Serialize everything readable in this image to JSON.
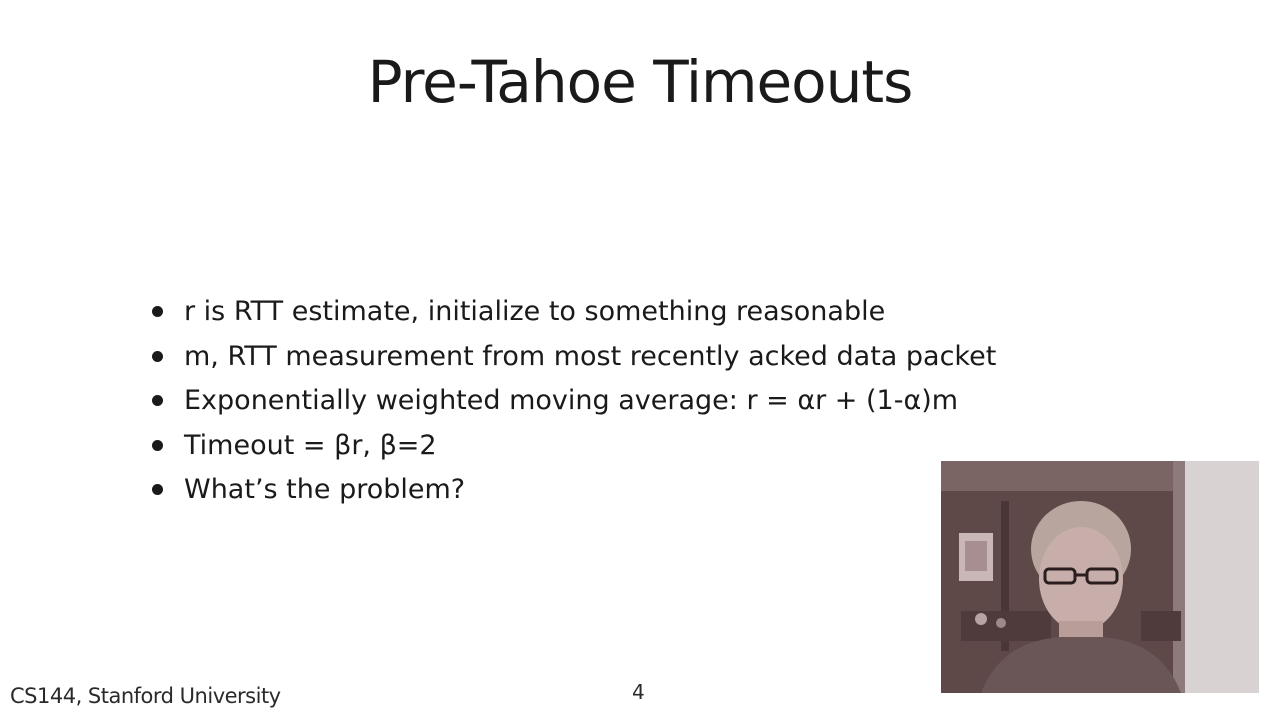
{
  "slide": {
    "title": "Pre-Tahoe Timeouts",
    "bullets": [
      "r is RTT estimate, initialize to something reasonable",
      "m, RTT measurement from most recently acked data packet",
      "Exponentially weighted moving average: r = αr + (1-α)m",
      "Timeout = βr, β=2",
      "What’s the problem?"
    ]
  },
  "footer": {
    "course": "CS144, Stanford University",
    "page_number": "4"
  },
  "webcam": {
    "icon": "presenter-video-feed"
  }
}
